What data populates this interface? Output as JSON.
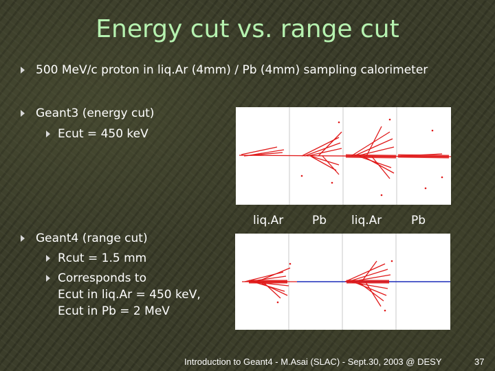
{
  "slide": {
    "title": "Energy cut vs. range cut",
    "bullets": [
      "500 MeV/c proton in liq.Ar (4mm) / Pb (4mm) sampling calorimeter",
      "Geant3 (energy cut)",
      "Geant4 (range cut)"
    ],
    "sub_bullets": {
      "geant3": [
        "Ecut = 450 keV"
      ],
      "geant4": [
        "Rcut = 1.5 mm",
        "Corresponds to"
      ]
    },
    "geant4_detail_lines": [
      "Ecut in liq.Ar = 450 keV,",
      "Ecut in Pb = 2 MeV"
    ],
    "material_labels": [
      "liq.Ar",
      "Pb",
      "liq.Ar",
      "Pb"
    ],
    "footer": "Introduction to Geant4 - M.Asai (SLAC) - Sept.30, 2003 @ DESY",
    "page_number": "37"
  },
  "colors": {
    "title": "#b6f2b0",
    "track": "#e01818",
    "secondary_track": "#1a2ab8",
    "boundary": "#c8c8c8"
  },
  "icons": [
    "arrow-bullet-icon"
  ]
}
